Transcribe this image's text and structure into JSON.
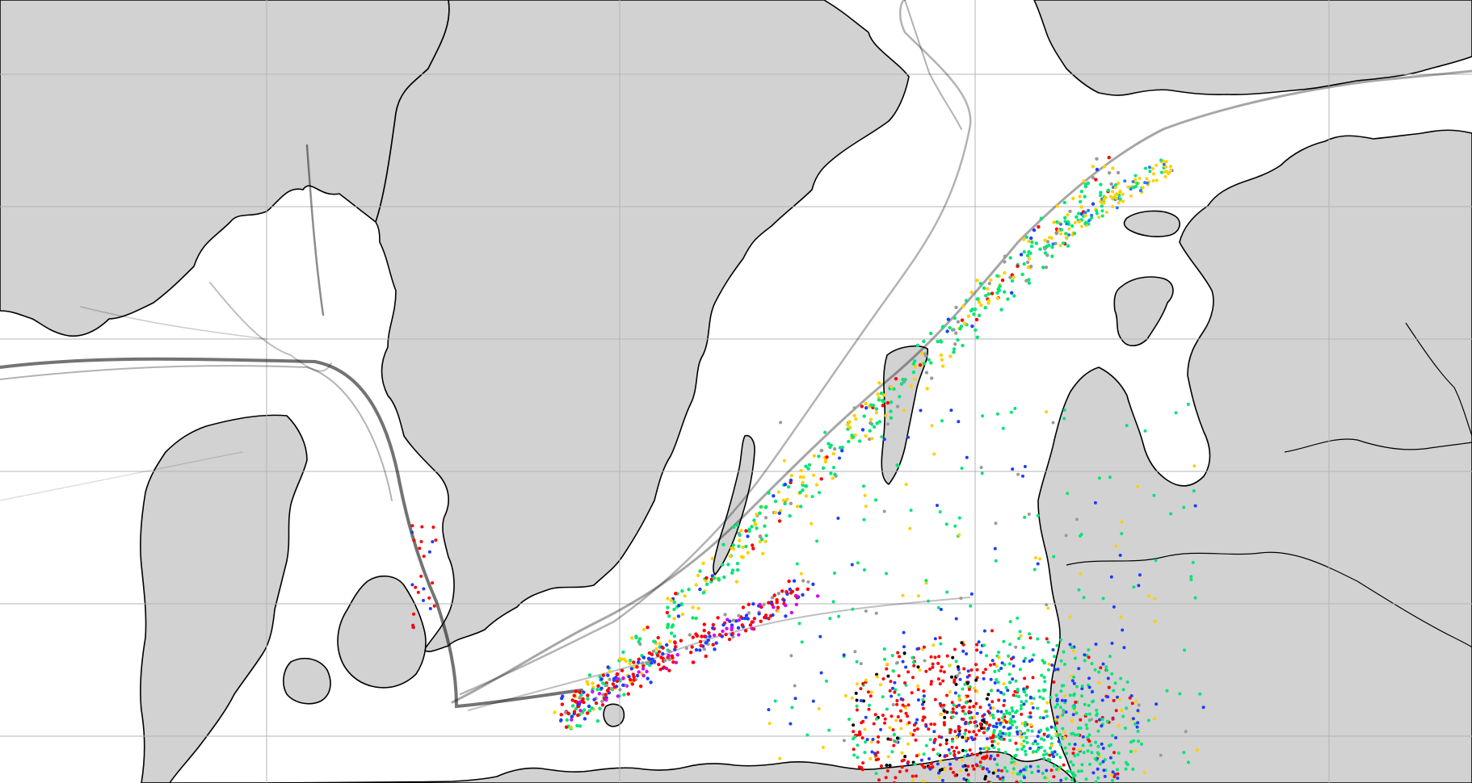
{
  "map": {
    "type": "vessel-traffic-density",
    "colors": {
      "land": "#d2d2d2",
      "sea": "#ffffff",
      "coastline": "#000000",
      "graticule": "#b4b4b4",
      "tracks": "#000000"
    },
    "vessel_colors": [
      "#00e676",
      "#ffd000",
      "#ff0000",
      "#1e3cff",
      "#2979ff",
      "#9a9a9a",
      "#00b0ff",
      "#d500f9",
      "#000000"
    ],
    "grid": true,
    "legend": false
  }
}
